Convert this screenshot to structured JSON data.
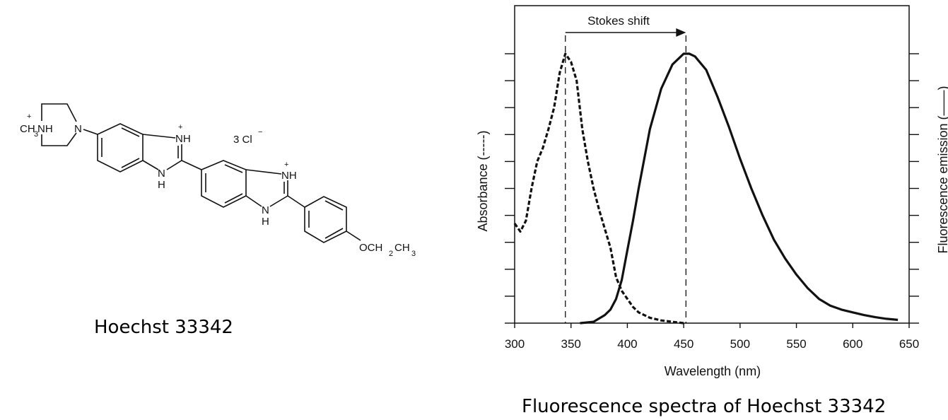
{
  "structure": {
    "name": "Hoechst 33342",
    "labels": {
      "ch3": "CH",
      "ch3_sub": "3",
      "nh_plus": "NH",
      "plus": "+",
      "n_piperazine": "N",
      "nh1": "NH",
      "n1": "N",
      "h1": "H",
      "nh2": "NH",
      "n2": "N",
      "h2": "H",
      "counterion": "3 Cl",
      "minus": "−",
      "och": "OCH",
      "och_sub": "2",
      "ch3b": "CH",
      "ch3b_sub": "3"
    }
  },
  "chart_caption": "Fluorescence spectra of Hoechst 33342",
  "chart_data": {
    "type": "line",
    "xlabel": "Wavelength (nm)",
    "ylabel_left": "Absorbance (-----)",
    "ylabel_right": "Fluorescence emission (——)",
    "xlim": [
      300,
      650
    ],
    "ylim": [
      0,
      1
    ],
    "x_ticks": [
      300,
      350,
      400,
      450,
      500,
      550,
      600,
      650
    ],
    "y_tick_count": 10,
    "y_tick_labels_shown": false,
    "grid": false,
    "annotation": {
      "text": "Stokes shift",
      "from": 345,
      "to": 452
    },
    "series": [
      {
        "name": "Absorbance",
        "style": "dashed",
        "x": [
          300,
          305,
          310,
          315,
          320,
          325,
          330,
          335,
          340,
          345,
          350,
          355,
          360,
          365,
          370,
          375,
          380,
          385,
          390,
          395,
          400,
          405,
          410,
          420,
          430,
          440,
          450
        ],
        "y": [
          0.37,
          0.34,
          0.38,
          0.5,
          0.6,
          0.65,
          0.72,
          0.8,
          0.93,
          1.0,
          0.97,
          0.9,
          0.72,
          0.6,
          0.5,
          0.42,
          0.35,
          0.28,
          0.17,
          0.12,
          0.09,
          0.06,
          0.04,
          0.02,
          0.01,
          0.005,
          0.0
        ]
      },
      {
        "name": "Fluorescence emission",
        "style": "solid",
        "x": [
          358,
          370,
          380,
          385,
          390,
          395,
          400,
          405,
          410,
          420,
          430,
          440,
          450,
          455,
          460,
          470,
          480,
          490,
          500,
          510,
          520,
          530,
          540,
          550,
          560,
          570,
          580,
          590,
          600,
          610,
          620,
          630,
          640
        ],
        "y": [
          0.0,
          0.005,
          0.03,
          0.05,
          0.09,
          0.16,
          0.27,
          0.38,
          0.5,
          0.72,
          0.87,
          0.96,
          1.0,
          1.0,
          0.99,
          0.94,
          0.84,
          0.73,
          0.61,
          0.5,
          0.4,
          0.31,
          0.24,
          0.18,
          0.13,
          0.09,
          0.065,
          0.05,
          0.04,
          0.03,
          0.022,
          0.016,
          0.012
        ]
      }
    ]
  },
  "colors": {
    "ink": "#111111",
    "background": "#ffffff"
  }
}
